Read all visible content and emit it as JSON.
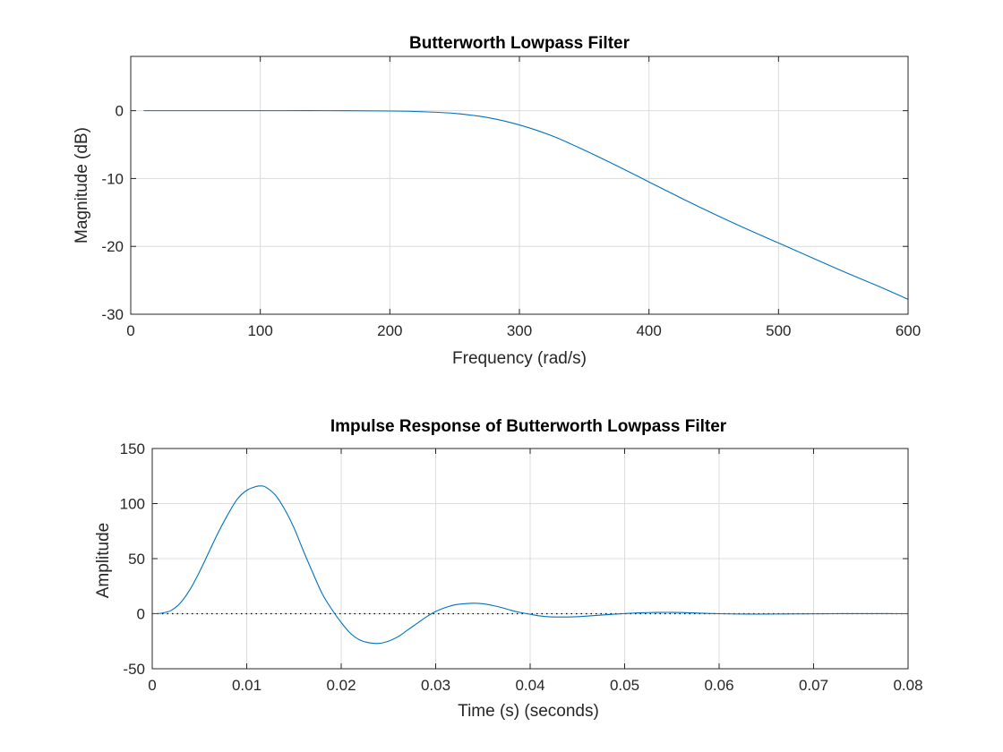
{
  "colors": {
    "line": "#0072BD",
    "axis": "#262626",
    "grid": "#dcdcdc"
  },
  "chart_data": [
    {
      "type": "line",
      "title": "Butterworth Lowpass Filter",
      "xlabel": "Frequency (rad/s)",
      "ylabel": "Magnitude (dB)",
      "xlim": [
        0,
        600
      ],
      "ylim": [
        -30,
        8
      ],
      "xticks": [
        0,
        100,
        200,
        300,
        400,
        500,
        600
      ],
      "yticks": [
        -30,
        -20,
        -10,
        0
      ],
      "xtick_labels": [
        "0",
        "100",
        "200",
        "300",
        "400",
        "500",
        "600"
      ],
      "ytick_labels": [
        "-30",
        "-20",
        "-10",
        "0"
      ],
      "grid": true,
      "series": [
        {
          "x": [
            10,
            50,
            100,
            150,
            200,
            225,
            250,
            275,
            300,
            325,
            350,
            375,
            400,
            425,
            450,
            475,
            500,
            525,
            550,
            575,
            600
          ],
          "y": [
            0,
            0,
            0,
            0,
            -0.05,
            -0.15,
            -0.4,
            -1.0,
            -2.1,
            -3.7,
            -5.8,
            -8.1,
            -10.5,
            -12.9,
            -15.2,
            -17.4,
            -19.5,
            -21.6,
            -23.7,
            -25.7,
            -27.8
          ]
        }
      ]
    },
    {
      "type": "line",
      "title": "Impulse Response of Butterworth Lowpass Filter",
      "xlabel": "Time (s) (seconds)",
      "ylabel": "Amplitude",
      "xlim": [
        0,
        0.08
      ],
      "ylim": [
        -50,
        150
      ],
      "xticks": [
        0,
        0.01,
        0.02,
        0.03,
        0.04,
        0.05,
        0.06,
        0.07,
        0.08
      ],
      "yticks": [
        -50,
        0,
        50,
        100,
        150
      ],
      "xtick_labels": [
        "0",
        "0.01",
        "0.02",
        "0.03",
        "0.04",
        "0.05",
        "0.06",
        "0.07",
        "0.08"
      ],
      "ytick_labels": [
        "-50",
        "0",
        "50",
        "100",
        "150"
      ],
      "grid": true,
      "reference_line": {
        "y": 0,
        "style": "dotted"
      },
      "series": [
        {
          "x": [
            0,
            0.001,
            0.002,
            0.003,
            0.004,
            0.005,
            0.006,
            0.007,
            0.008,
            0.009,
            0.01,
            0.011,
            0.0115,
            0.012,
            0.013,
            0.014,
            0.015,
            0.016,
            0.017,
            0.018,
            0.019,
            0.02,
            0.021,
            0.022,
            0.023,
            0.024,
            0.025,
            0.026,
            0.027,
            0.028,
            0.029,
            0.03,
            0.031,
            0.032,
            0.033,
            0.034,
            0.035,
            0.036,
            0.037,
            0.038,
            0.039,
            0.04,
            0.041,
            0.042,
            0.043,
            0.044,
            0.045,
            0.046,
            0.047,
            0.048,
            0.049,
            0.05,
            0.051,
            0.052,
            0.053,
            0.054,
            0.055,
            0.056,
            0.057,
            0.058,
            0.059,
            0.06,
            0.062,
            0.064,
            0.066,
            0.068,
            0.07,
            0.072,
            0.074,
            0.076,
            0.078,
            0.08
          ],
          "y": [
            0,
            0.5,
            3,
            10,
            22,
            38,
            56,
            74,
            90,
            104,
            112,
            115.5,
            116,
            115,
            108,
            95,
            78,
            57,
            37,
            18,
            4,
            -8,
            -18,
            -24,
            -26.5,
            -27,
            -25,
            -21,
            -15,
            -9,
            -3,
            2,
            5.5,
            8,
            9,
            9.5,
            9,
            7.5,
            5.5,
            3,
            1,
            -0.5,
            -2,
            -2.8,
            -3,
            -3,
            -2.7,
            -2.2,
            -1.6,
            -1,
            -0.4,
            0.1,
            0.6,
            0.9,
            1.1,
            1.2,
            1.2,
            1.1,
            0.8,
            0.5,
            0.2,
            0,
            -0.3,
            -0.4,
            -0.3,
            -0.2,
            -0.1,
            0,
            0.05,
            0.05,
            0.02,
            0
          ]
        }
      ]
    }
  ]
}
